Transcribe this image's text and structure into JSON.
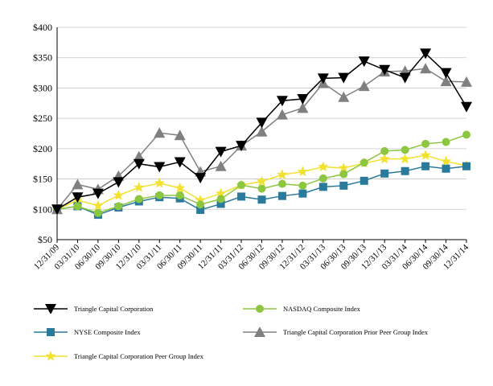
{
  "chart_data": {
    "type": "line",
    "categories": [
      "12/31/09",
      "03/31/10",
      "06/30/10",
      "09/30/10",
      "12/31/10",
      "03/31/11",
      "06/30/11",
      "09/30/11",
      "12/31/11",
      "03/31/12",
      "06/30/12",
      "09/30/12",
      "12/31/12",
      "03/31/13",
      "06/30/13",
      "09/30/13",
      "12/31/13",
      "03/31/14",
      "06/30/14",
      "09/30/14",
      "12/31/14"
    ],
    "ylim": [
      50,
      400
    ],
    "yticks": [
      50,
      100,
      150,
      200,
      250,
      300,
      350,
      400
    ],
    "ytick_labels": [
      "$50",
      "$100",
      "$150",
      "$200",
      "$250",
      "$300",
      "$350",
      "$400"
    ],
    "grid": "horizontal",
    "legend_position": "bottom",
    "series": [
      {
        "name": "Triangle Capital Corporation",
        "color": "#000000",
        "marker": "triangle-down",
        "values": [
          100,
          120,
          126,
          145,
          175,
          170,
          178,
          152,
          195,
          205,
          243,
          279,
          282,
          316,
          317,
          344,
          330,
          317,
          357,
          325,
          269
        ]
      },
      {
        "name": "NASDAQ Composite Index",
        "color": "#8dc63f",
        "marker": "circle",
        "values": [
          100,
          105,
          94,
          105,
          117,
          123,
          123,
          108,
          117,
          140,
          134,
          142,
          139,
          151,
          158,
          177,
          196,
          198,
          208,
          211,
          223
        ]
      },
      {
        "name": "NYSE Composite Index",
        "color": "#2a7a9b",
        "marker": "square",
        "values": [
          100,
          105,
          91,
          103,
          113,
          120,
          118,
          99,
          109,
          121,
          116,
          122,
          126,
          137,
          139,
          147,
          159,
          163,
          171,
          167,
          171
        ]
      },
      {
        "name": "Triangle Capital Corporation Prior Peer Group Index",
        "color": "#808080",
        "marker": "triangle-up",
        "values": [
          100,
          141,
          133,
          155,
          187,
          226,
          222,
          162,
          171,
          205,
          228,
          256,
          267,
          308,
          285,
          303,
          327,
          328,
          332,
          311,
          310
        ]
      },
      {
        "name": "Triangle Capital Corporation Peer Group Index",
        "color": "#f2e12e",
        "marker": "star",
        "values": [
          100,
          115,
          106,
          123,
          136,
          143,
          135,
          115,
          126,
          140,
          146,
          157,
          162,
          170,
          168,
          176,
          183,
          183,
          189,
          179,
          172
        ]
      }
    ]
  }
}
